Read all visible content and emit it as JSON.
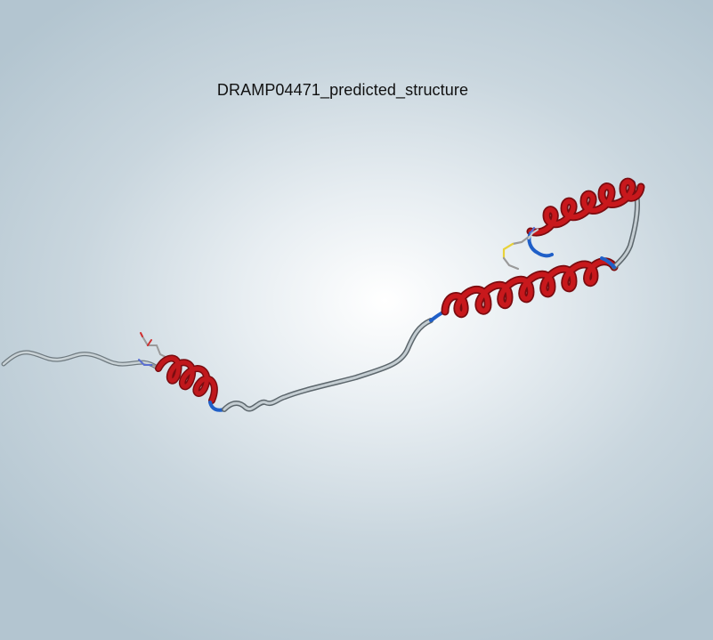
{
  "viewer": {
    "title": "DRAMP04471_predicted_structure"
  },
  "colors": {
    "helix": "#c0181c",
    "helix_dark": "#7a0c10",
    "coil": "#b9c3c8",
    "coil_dark": "#5c666c",
    "turn": "#1f5fc8",
    "disulfide": "#e8d23a",
    "sidechain_carbon": "#9a9a9a",
    "sidechain_nitrogen": "#5a6fd0",
    "sidechain_oxygen": "#d03030"
  },
  "structure_elements": [
    "n-terminal-coil",
    "helix-1",
    "linker-coil",
    "helix-2",
    "hairpin-loop",
    "helix-3",
    "disulfide-bond"
  ]
}
